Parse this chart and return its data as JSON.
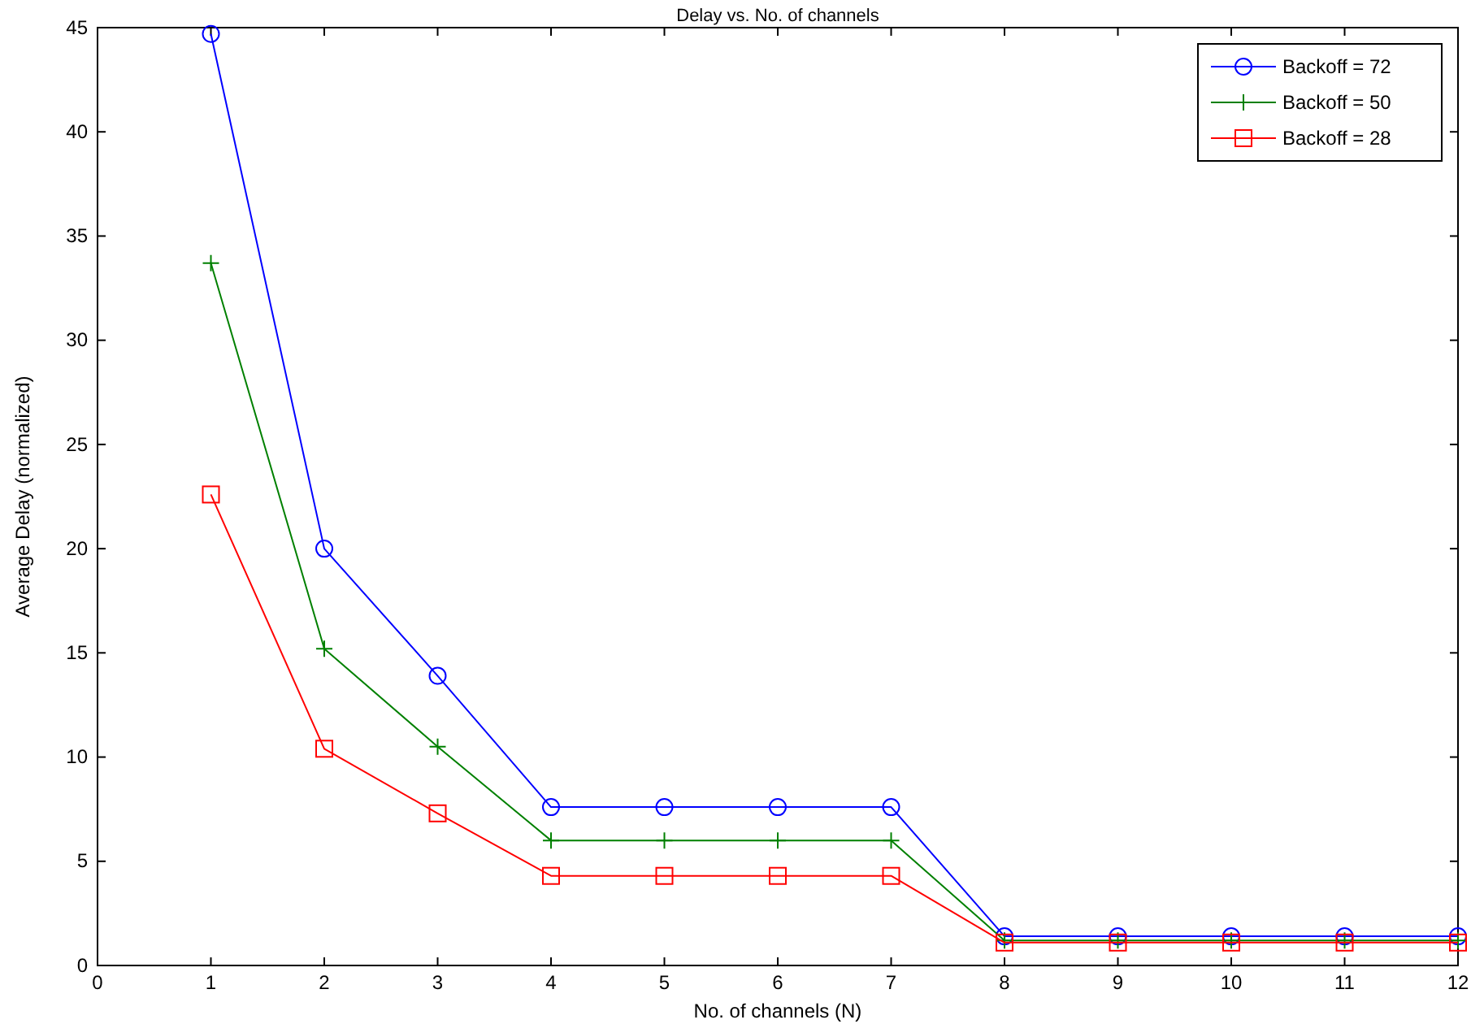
{
  "chart_data": {
    "type": "line",
    "title": "Delay vs. No. of channels",
    "xlabel": "No. of channels (N)",
    "ylabel": "Average Delay (normalized)",
    "x": [
      1,
      2,
      3,
      4,
      5,
      6,
      7,
      8,
      9,
      10,
      11,
      12
    ],
    "xlim": [
      0,
      12
    ],
    "xticks": [
      0,
      1,
      2,
      3,
      4,
      5,
      6,
      7,
      8,
      9,
      10,
      11,
      12
    ],
    "ylim": [
      0,
      45
    ],
    "yticks": [
      0,
      5,
      10,
      15,
      20,
      25,
      30,
      35,
      40,
      45
    ],
    "grid": false,
    "legend": "top right",
    "line_style": "solid",
    "series": [
      {
        "name": "Backoff = 72",
        "color": "#0000ff",
        "marker": "circle",
        "values": [
          44.7,
          20,
          13.9,
          7.6,
          7.6,
          7.6,
          7.6,
          1.4,
          1.4,
          1.4,
          1.4,
          1.4
        ]
      },
      {
        "name": "Backoff = 50",
        "color": "#008000",
        "marker": "cross",
        "values": [
          33.7,
          15.2,
          10.5,
          6.0,
          6.0,
          6.0,
          6.0,
          1.2,
          1.2,
          1.2,
          1.2,
          1.2
        ]
      },
      {
        "name": "Backoff = 28",
        "color": "#ff0000",
        "marker": "square",
        "values": [
          22.6,
          10.4,
          7.3,
          4.3,
          4.3,
          4.3,
          4.3,
          1.1,
          1.1,
          1.1,
          1.1,
          1.1
        ]
      }
    ]
  }
}
